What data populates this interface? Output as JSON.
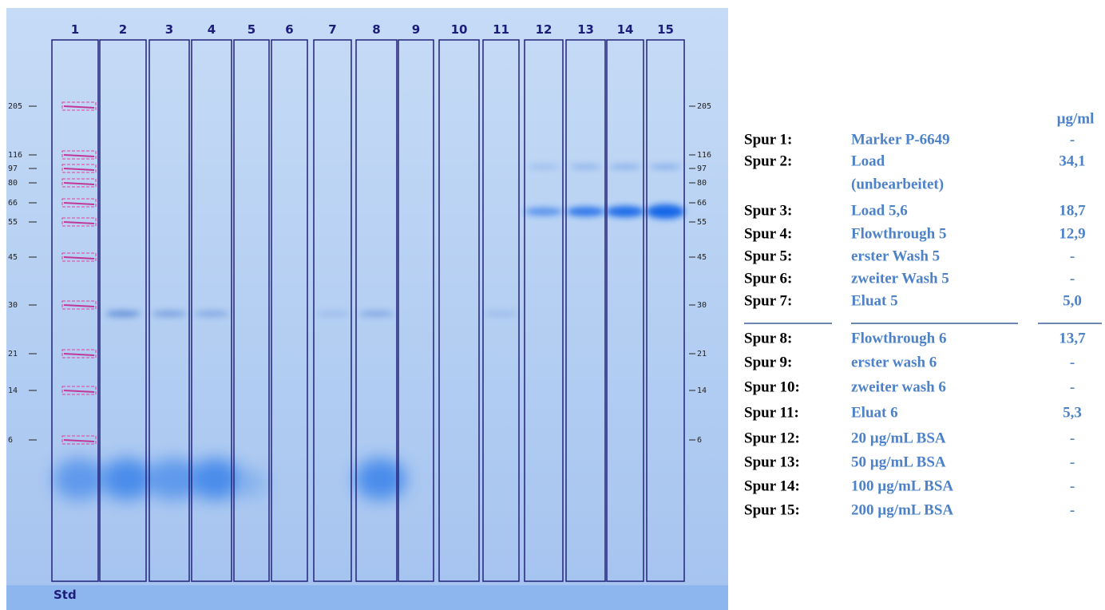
{
  "gel": {
    "lanes": [
      "1",
      "2",
      "3",
      "4",
      "5",
      "6",
      "7",
      "8",
      "9",
      "10",
      "11",
      "12",
      "13",
      "14",
      "15"
    ],
    "markers": [
      "205",
      "116",
      "97",
      "80",
      "66",
      "55",
      "45",
      "30",
      "21",
      "14",
      "6"
    ],
    "standard_label": "Std"
  },
  "legend": {
    "unit_header": "µg/ml",
    "rows": [
      {
        "lane": "Spur 1:",
        "description": [
          "Marker P-6649"
        ],
        "concentration": "-"
      },
      {
        "lane": "Spur 2:",
        "description": [
          "Load",
          "(unbearbeitet)"
        ],
        "concentration": "34,1"
      },
      {
        "lane": "Spur 3:",
        "description": [
          "Load 5,6"
        ],
        "concentration": "18,7"
      },
      {
        "lane": "Spur 4:",
        "description": [
          "Flowthrough 5"
        ],
        "concentration": "12,9"
      },
      {
        "lane": "Spur 5:",
        "description": [
          "erster Wash 5"
        ],
        "concentration": "-"
      },
      {
        "lane": "Spur 6:",
        "description": [
          "zweiter Wash 5"
        ],
        "concentration": "-"
      },
      {
        "lane": "Spur 7:",
        "description": [
          "Eluat 5"
        ],
        "concentration": "5,0"
      },
      {
        "lane": "Spur 8:",
        "description": [
          "Flowthrough 6"
        ],
        "concentration": "13,7"
      },
      {
        "lane": "Spur 9:",
        "description": [
          "erster wash 6"
        ],
        "concentration": "-"
      },
      {
        "lane": "Spur 10:",
        "description": [
          "zweiter wash 6"
        ],
        "concentration": "-"
      },
      {
        "lane": "Spur 11:",
        "description": [
          "Eluat 6"
        ],
        "concentration": "5,3"
      },
      {
        "lane": "Spur 12:",
        "description": [
          "20 µg/mL BSA"
        ],
        "concentration": "-"
      },
      {
        "lane": "Spur 13:",
        "description": [
          "50 µg/mL BSA"
        ],
        "concentration": "-"
      },
      {
        "lane": "Spur 14:",
        "description": [
          "100 µg/mL BSA"
        ],
        "concentration": "-"
      },
      {
        "lane": "Spur 15:",
        "description": [
          "200 µg/mL BSA"
        ],
        "concentration": "-"
      }
    ]
  }
}
